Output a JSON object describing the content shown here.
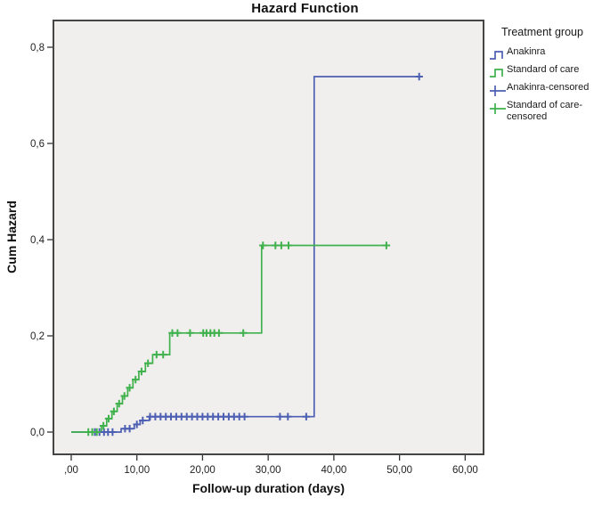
{
  "figure": {
    "legend": {
      "title": "Treatment group",
      "entries": [
        {
          "label": "Anakinra",
          "type": "step",
          "color": "#4d5fb3"
        },
        {
          "label": "Standard of care",
          "type": "step",
          "color": "#3fb14d"
        },
        {
          "label": "Anakinra-censored",
          "type": "censor",
          "color": "#4d5fb3"
        },
        {
          "label": "Standard of care-censored",
          "type": "censor",
          "color": "#3fb14d"
        }
      ]
    }
  },
  "chart_data": {
    "type": "line",
    "subtype": "step-function-cumulative-hazard",
    "title": "Hazard Function",
    "xlabel": "Follow-up duration (days)",
    "ylabel": "Cum Hazard",
    "xlim": [
      -2.71,
      62.8
    ],
    "ylim": [
      -0.0463,
      0.8556
    ],
    "grid": false,
    "legend_position": "right",
    "plot_bg_color": "#f0efed",
    "plot_border_color": "#454545",
    "x_ticks": {
      "values": [
        0,
        10,
        20,
        30,
        40,
        50,
        60
      ],
      "labels": [
        ",00",
        "10,00",
        "20,00",
        "30,00",
        "40,00",
        "50,00",
        "60,00"
      ]
    },
    "y_ticks": {
      "values": [
        0,
        0.2,
        0.4,
        0.6,
        0.8
      ],
      "labels": [
        "0,0",
        "0,2",
        "0,4",
        "0,6",
        "0,8"
      ]
    },
    "series": [
      {
        "name": "Anakinra",
        "color": "#4d5fb3",
        "steps": [
          [
            0,
            0
          ],
          [
            7.6,
            0.007
          ],
          [
            9.6,
            0.016
          ],
          [
            10.5,
            0.024
          ],
          [
            11.9,
            0.032
          ],
          [
            37.0,
            0.739
          ]
        ],
        "end_x": 53.4,
        "censored": [
          [
            3.6,
            0
          ],
          [
            4.3,
            0
          ],
          [
            5.0,
            0
          ],
          [
            5.6,
            0
          ],
          [
            6.3,
            0
          ],
          [
            8.2,
            0.007
          ],
          [
            8.9,
            0.007
          ],
          [
            10.0,
            0.016
          ],
          [
            10.9,
            0.024
          ],
          [
            12.0,
            0.032
          ],
          [
            12.8,
            0.032
          ],
          [
            13.6,
            0.032
          ],
          [
            14.4,
            0.032
          ],
          [
            15.2,
            0.032
          ],
          [
            16.0,
            0.032
          ],
          [
            16.8,
            0.032
          ],
          [
            17.6,
            0.032
          ],
          [
            18.4,
            0.032
          ],
          [
            19.2,
            0.032
          ],
          [
            20.0,
            0.032
          ],
          [
            20.8,
            0.032
          ],
          [
            21.6,
            0.032
          ],
          [
            22.4,
            0.032
          ],
          [
            23.2,
            0.032
          ],
          [
            24.0,
            0.032
          ],
          [
            24.8,
            0.032
          ],
          [
            25.6,
            0.032
          ],
          [
            26.4,
            0.032
          ],
          [
            31.8,
            0.032
          ],
          [
            33.0,
            0.032
          ],
          [
            35.8,
            0.032
          ],
          [
            53.0,
            0.739
          ]
        ]
      },
      {
        "name": "Standard of care",
        "color": "#3fb14d",
        "steps": [
          [
            0,
            0
          ],
          [
            4.6,
            0.013
          ],
          [
            5.4,
            0.028
          ],
          [
            6.2,
            0.043
          ],
          [
            7.0,
            0.059
          ],
          [
            7.8,
            0.075
          ],
          [
            8.6,
            0.092
          ],
          [
            9.4,
            0.109
          ],
          [
            10.3,
            0.126
          ],
          [
            11.3,
            0.143
          ],
          [
            12.4,
            0.161
          ],
          [
            15.0,
            0.206
          ],
          [
            29.0,
            0.388
          ]
        ],
        "end_x": 48.3,
        "censored": [
          [
            2.6,
            0
          ],
          [
            3.2,
            0
          ],
          [
            3.9,
            0
          ],
          [
            4.9,
            0.013
          ],
          [
            5.7,
            0.028
          ],
          [
            6.5,
            0.043
          ],
          [
            7.3,
            0.059
          ],
          [
            8.1,
            0.075
          ],
          [
            8.9,
            0.092
          ],
          [
            9.8,
            0.109
          ],
          [
            10.7,
            0.126
          ],
          [
            11.7,
            0.143
          ],
          [
            13.0,
            0.161
          ],
          [
            14.0,
            0.161
          ],
          [
            15.4,
            0.206
          ],
          [
            16.2,
            0.206
          ],
          [
            18.1,
            0.206
          ],
          [
            20.1,
            0.206
          ],
          [
            20.6,
            0.206
          ],
          [
            21.2,
            0.206
          ],
          [
            21.8,
            0.206
          ],
          [
            22.5,
            0.206
          ],
          [
            26.2,
            0.206
          ],
          [
            29.2,
            0.388
          ],
          [
            31.1,
            0.388
          ],
          [
            32.0,
            0.388
          ],
          [
            33.1,
            0.388
          ],
          [
            48.0,
            0.388
          ]
        ]
      }
    ]
  }
}
